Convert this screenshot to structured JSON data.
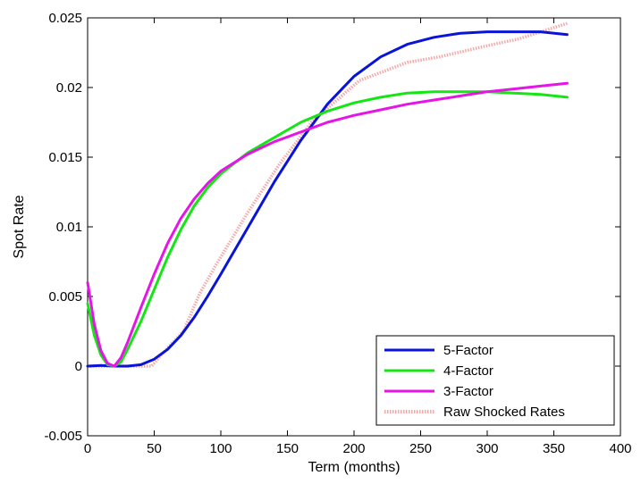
{
  "chart_data": {
    "type": "line",
    "title": "",
    "xlabel": "Term (months)",
    "ylabel": "Spot Rate",
    "xlim": [
      0,
      400
    ],
    "ylim": [
      -0.005,
      0.025
    ],
    "xticks": [
      0,
      50,
      100,
      150,
      200,
      250,
      300,
      350,
      400
    ],
    "xtick_labels": [
      "0",
      "50",
      "100",
      "150",
      "200",
      "250",
      "300",
      "350",
      "400"
    ],
    "yticks": [
      -0.005,
      0,
      0.005,
      0.01,
      0.015,
      0.02,
      0.025
    ],
    "ytick_labels": [
      "-0.005",
      "0",
      "0.005",
      "0.01",
      "0.015",
      "0.02",
      "0.025"
    ],
    "grid": false,
    "legend_position": "bottom-right",
    "series": [
      {
        "name": "5-Factor",
        "color": "#0a14d9",
        "style": "solid",
        "x": [
          0,
          10,
          20,
          30,
          40,
          50,
          60,
          70,
          80,
          90,
          100,
          120,
          140,
          160,
          180,
          200,
          220,
          240,
          260,
          280,
          300,
          320,
          340,
          360
        ],
        "y": [
          0,
          5e-05,
          0,
          0,
          0.0001,
          0.0005,
          0.0012,
          0.0022,
          0.0035,
          0.005,
          0.0066,
          0.0099,
          0.0132,
          0.0162,
          0.0188,
          0.0208,
          0.0222,
          0.0231,
          0.0236,
          0.0239,
          0.024,
          0.024,
          0.024,
          0.0238
        ]
      },
      {
        "name": "4-Factor",
        "color": "#14e614",
        "style": "solid",
        "x": [
          0,
          5,
          10,
          15,
          20,
          25,
          30,
          40,
          50,
          60,
          70,
          80,
          90,
          100,
          120,
          140,
          160,
          180,
          200,
          220,
          240,
          260,
          280,
          300,
          320,
          340,
          360
        ],
        "y": [
          0.0045,
          0.0022,
          0.0008,
          0.0001,
          0,
          0.0003,
          0.0012,
          0.0032,
          0.0055,
          0.0078,
          0.0098,
          0.0115,
          0.0128,
          0.0138,
          0.0153,
          0.0164,
          0.0175,
          0.0183,
          0.0189,
          0.0193,
          0.0196,
          0.0197,
          0.0197,
          0.0197,
          0.0196,
          0.0195,
          0.0193
        ]
      },
      {
        "name": "3-Factor",
        "color": "#e614e6",
        "style": "solid",
        "x": [
          0,
          5,
          10,
          15,
          20,
          25,
          30,
          40,
          50,
          60,
          70,
          80,
          90,
          100,
          120,
          140,
          160,
          180,
          200,
          220,
          240,
          260,
          280,
          300,
          320,
          340,
          360
        ],
        "y": [
          0.006,
          0.003,
          0.0011,
          0.0002,
          0,
          0.0006,
          0.0017,
          0.0042,
          0.0066,
          0.0088,
          0.0106,
          0.012,
          0.0131,
          0.014,
          0.0152,
          0.0161,
          0.0168,
          0.0175,
          0.018,
          0.0184,
          0.0188,
          0.0191,
          0.0194,
          0.0197,
          0.0199,
          0.0201,
          0.0203
        ]
      },
      {
        "name": "Raw Shocked Rates",
        "color": "#f5a8a8",
        "style": "dotted",
        "x": [
          0,
          15,
          48,
          60,
          72,
          84,
          96,
          120,
          144,
          168,
          180,
          204,
          240,
          264,
          300,
          324,
          360
        ],
        "y": [
          0,
          0,
          0,
          0.0013,
          0.0025,
          0.0052,
          0.0072,
          0.011,
          0.0145,
          0.0175,
          0.0185,
          0.0205,
          0.0218,
          0.0222,
          0.023,
          0.0235,
          0.0246
        ]
      }
    ]
  }
}
